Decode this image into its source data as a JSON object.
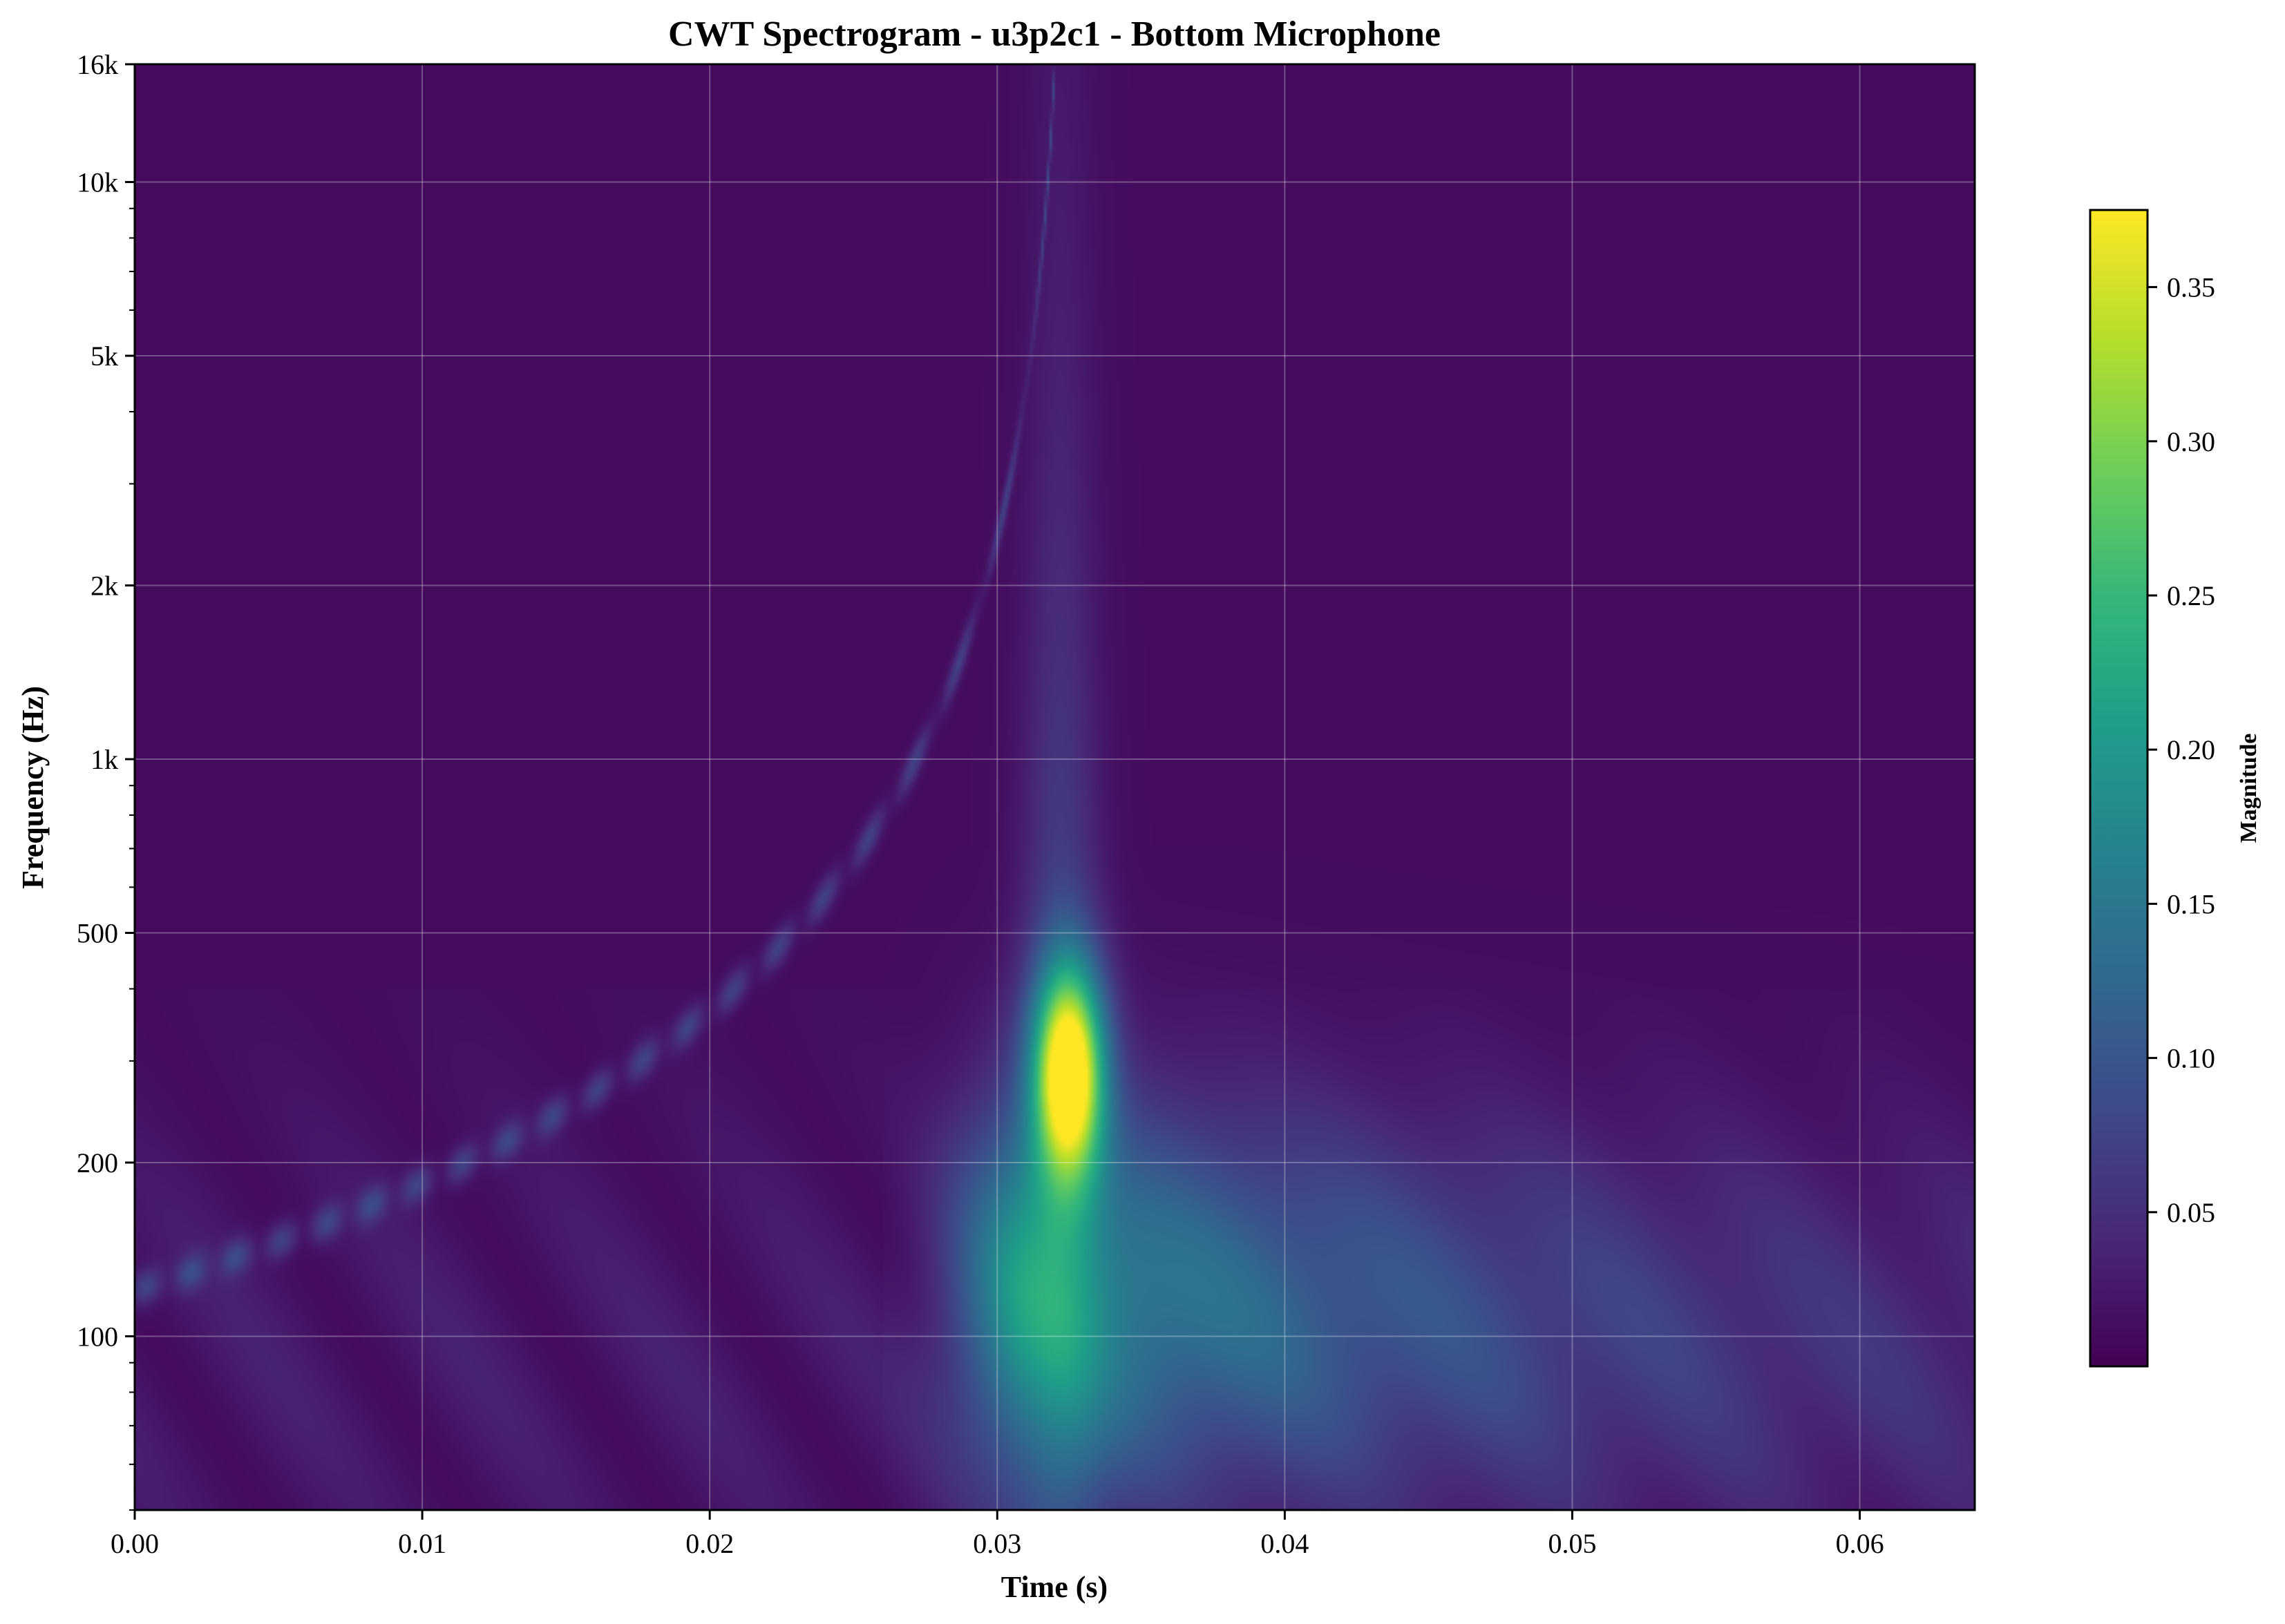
{
  "chart_data": {
    "type": "heatmap",
    "title": "CWT Spectrogram - u3p2c1 - Bottom Microphone",
    "xlabel": "Time (s)",
    "ylabel": "Frequency (Hz)",
    "xlim": [
      0.0,
      0.064
    ],
    "ylim": [
      50,
      16000
    ],
    "yscale": "log",
    "grid": true,
    "colormap": "viridis",
    "x_ticks": [
      {
        "value": 0.0,
        "label": "0.00"
      },
      {
        "value": 0.01,
        "label": "0.01"
      },
      {
        "value": 0.02,
        "label": "0.02"
      },
      {
        "value": 0.03,
        "label": "0.03"
      },
      {
        "value": 0.04,
        "label": "0.04"
      },
      {
        "value": 0.05,
        "label": "0.05"
      },
      {
        "value": 0.06,
        "label": "0.06"
      }
    ],
    "y_ticks": [
      {
        "value": 100,
        "label": "100"
      },
      {
        "value": 200,
        "label": "200"
      },
      {
        "value": 500,
        "label": "500"
      },
      {
        "value": 1000,
        "label": "1k"
      },
      {
        "value": 2000,
        "label": "2k"
      },
      {
        "value": 5000,
        "label": "5k"
      },
      {
        "value": 10000,
        "label": "10k"
      },
      {
        "value": 16000,
        "label": "16k"
      }
    ],
    "colorbar": {
      "label": "Magnitude",
      "range": [
        0.0,
        0.375
      ],
      "ticks": [
        {
          "value": 0.05,
          "label": "0.05"
        },
        {
          "value": 0.1,
          "label": "0.10"
        },
        {
          "value": 0.15,
          "label": "0.15"
        },
        {
          "value": 0.2,
          "label": "0.20"
        },
        {
          "value": 0.25,
          "label": "0.25"
        },
        {
          "value": 0.3,
          "label": "0.30"
        },
        {
          "value": 0.35,
          "label": "0.35"
        }
      ]
    },
    "features": [
      {
        "name": "chirp",
        "start_time": 0.0,
        "start_freq": 120,
        "end_time": 0.032,
        "end_freq": 16000
      },
      {
        "name": "peak",
        "time": 0.0325,
        "freq": 290,
        "magnitude": 0.37
      }
    ]
  }
}
